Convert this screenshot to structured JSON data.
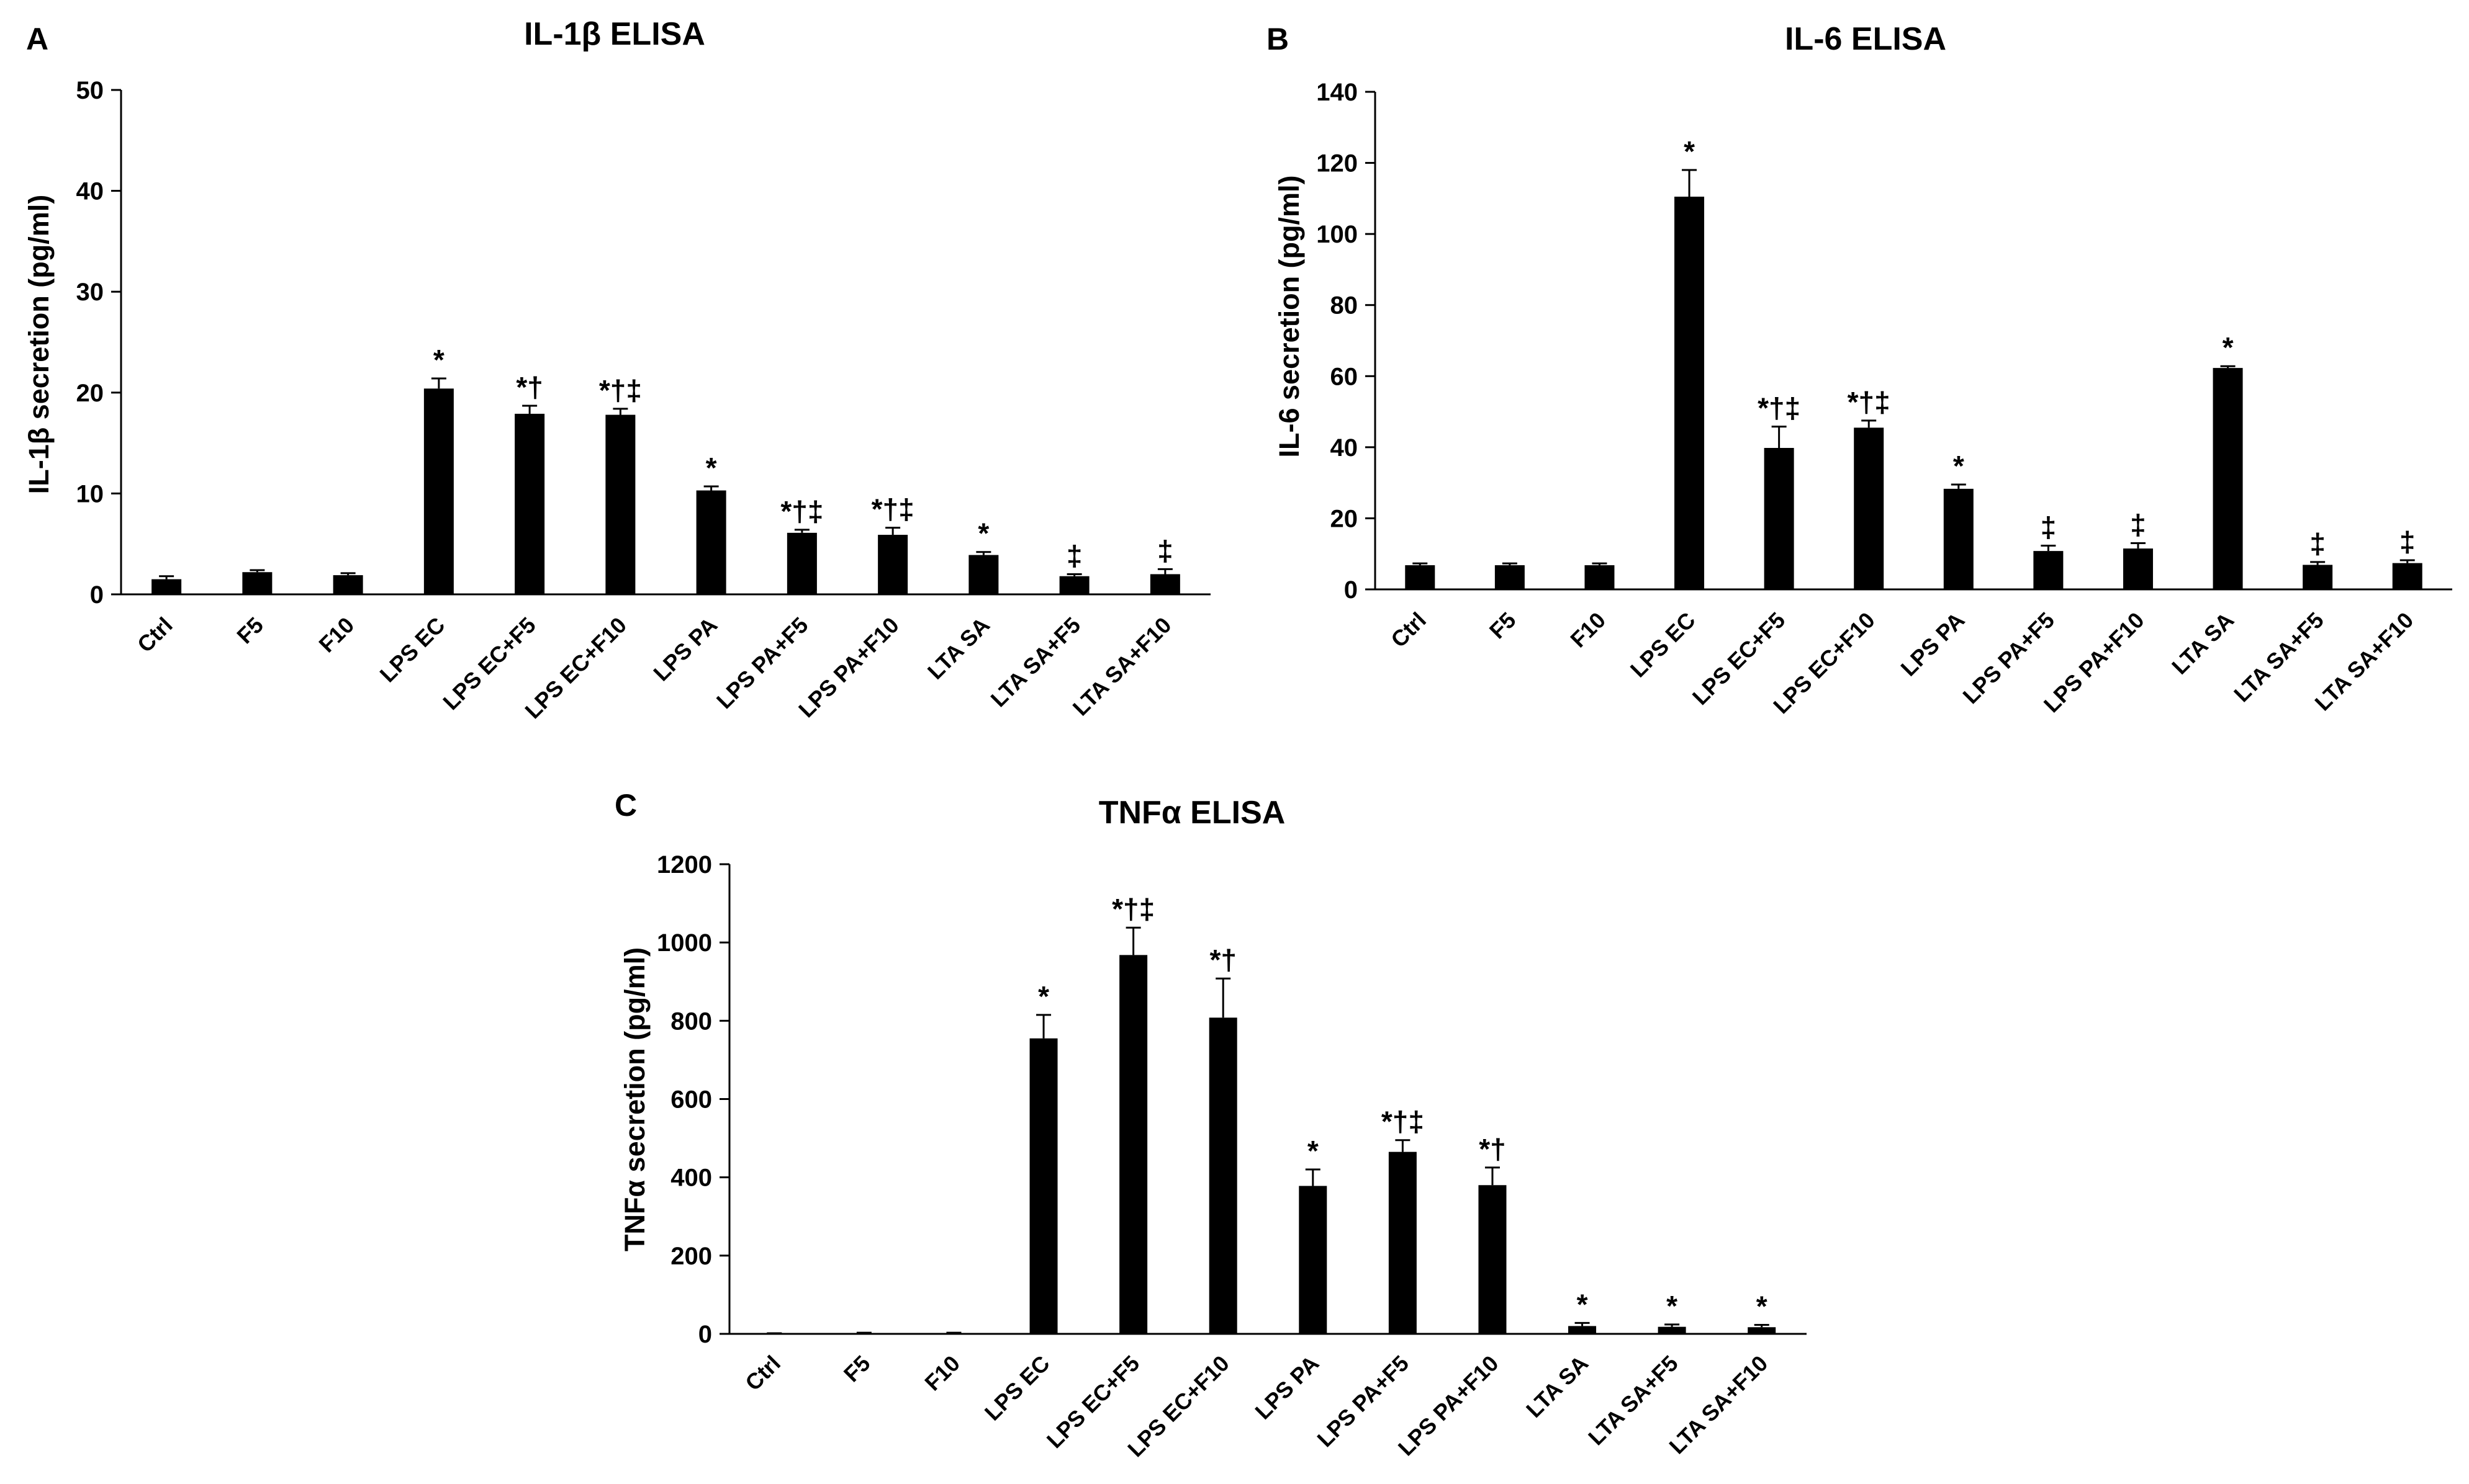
{
  "figure": {
    "bar_color": "#000000"
  },
  "chart_data": [
    {
      "panel": "A",
      "type": "bar",
      "title": "IL-1β ELISA",
      "xlabel": "",
      "ylabel": "IL-1β secretion (pg/ml)",
      "ylim": [
        0,
        50
      ],
      "yticks": [
        0,
        10,
        20,
        30,
        40,
        50
      ],
      "categories": [
        "Ctrl",
        "F5",
        "F10",
        "LPS EC",
        "LPS EC+F5",
        "LPS EC+F10",
        "LPS PA",
        "LPS PA+F5",
        "LPS PA+F10",
        "LTA SA",
        "LTA SA+F5",
        "LTA SA+F10"
      ],
      "values": [
        1.5,
        2.2,
        1.9,
        20.4,
        17.9,
        17.8,
        10.3,
        6.1,
        5.9,
        3.9,
        1.8,
        2.0
      ],
      "errors": [
        0.3,
        0.2,
        0.2,
        1.0,
        0.8,
        0.6,
        0.4,
        0.3,
        0.7,
        0.3,
        0.2,
        0.5
      ],
      "significance": [
        "",
        "",
        "",
        "*",
        "*†",
        "*†‡",
        "*",
        "*†‡",
        "*†‡",
        "*",
        "‡",
        "‡"
      ]
    },
    {
      "panel": "B",
      "type": "bar",
      "title": "IL-6 ELISA",
      "xlabel": "",
      "ylabel": "IL-6 secretion (pg/ml)",
      "ylim": [
        0,
        140
      ],
      "yticks": [
        0,
        20,
        40,
        60,
        80,
        100,
        120,
        140
      ],
      "categories": [
        "Ctrl",
        "F5",
        "F10",
        "LPS EC",
        "LPS EC+F5",
        "LPS EC+F10",
        "LPS PA",
        "LPS PA+F5",
        "LPS PA+F10",
        "LTA SA",
        "LTA SA+F5",
        "LTA SA+F10"
      ],
      "values": [
        6.8,
        6.8,
        6.8,
        110.5,
        39.8,
        45.5,
        28.3,
        10.8,
        11.5,
        62.3,
        6.9,
        7.4
      ],
      "errors": [
        0.5,
        0.5,
        0.5,
        7.5,
        6.0,
        2.0,
        1.2,
        1.5,
        1.5,
        0.5,
        0.8,
        0.8
      ],
      "significance": [
        "",
        "",
        "",
        "*",
        "*†‡",
        "*†‡",
        "*",
        "‡",
        "‡",
        "*",
        "‡",
        "‡"
      ]
    },
    {
      "panel": "C",
      "type": "bar",
      "title": "TNFα ELISA",
      "xlabel": "",
      "ylabel": "TNFα secretion (pg/ml)",
      "ylim": [
        0,
        1200
      ],
      "yticks": [
        0,
        200,
        400,
        600,
        800,
        1000,
        1200
      ],
      "categories": [
        "Ctrl",
        "F5",
        "F10",
        "LPS EC",
        "LPS EC+F5",
        "LPS EC+F10",
        "LPS PA",
        "LPS PA+F5",
        "LPS PA+F10",
        "LTA SA",
        "LTA SA+F5",
        "LTA SA+F10"
      ],
      "values": [
        1,
        2,
        2,
        755,
        968,
        808,
        378,
        465,
        380,
        20,
        18,
        17
      ],
      "errors": [
        0.5,
        1,
        1,
        60,
        70,
        100,
        42,
        30,
        45,
        8,
        6,
        6
      ],
      "significance": [
        "",
        "",
        "",
        "*",
        "*†‡",
        "*†",
        "*",
        "*†‡",
        "*†",
        "*",
        "*",
        "*"
      ]
    }
  ]
}
